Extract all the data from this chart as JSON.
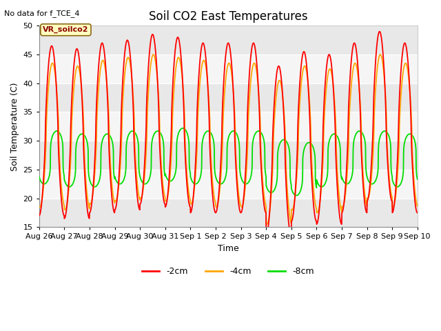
{
  "title": "Soil CO2 East Temperatures",
  "no_data_text": "No data for f_TCE_4",
  "xlabel": "Time",
  "ylabel": "Soil Temperature (C)",
  "ylim": [
    15,
    50
  ],
  "legend_label": "VR_soilco2",
  "x_tick_labels": [
    "Aug 26",
    "Aug 27",
    "Aug 28",
    "Aug 29",
    "Aug 30",
    "Aug 31",
    "Sep 1",
    "Sep 2",
    "Sep 3",
    "Sep 4",
    "Sep 5",
    "Sep 6",
    "Sep 7",
    "Sep 8",
    "Sep 9",
    "Sep 10"
  ],
  "series_labels": [
    "-2cm",
    "-4cm",
    "-8cm"
  ],
  "series_colors": [
    "#ff0000",
    "#ffa500",
    "#00dd00"
  ],
  "num_days": 15,
  "points_per_day": 144,
  "background_color": "#ffffff",
  "title_fontsize": 12,
  "axis_label_fontsize": 9,
  "tick_fontsize": 8
}
